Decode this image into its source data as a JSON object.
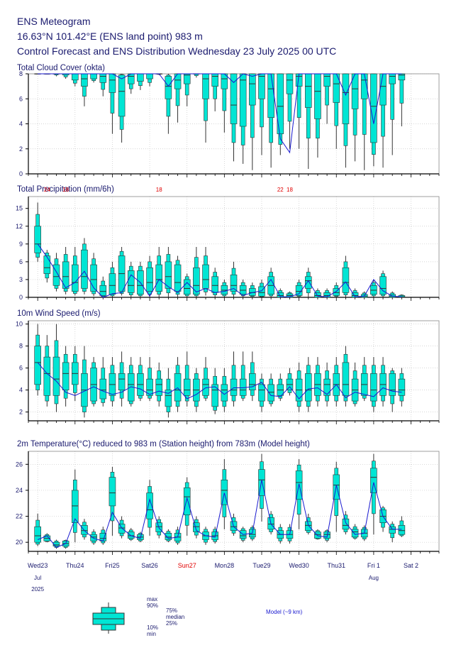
{
  "header": {
    "title": "ENS Meteogram",
    "location": "16.63°N 101.42°E (ENS land point) 983 m",
    "subtitle": "Control Forecast and ENS Distribution Wednesday 23 July 2025 00 UTC"
  },
  "colors": {
    "box": "#00e5d4",
    "line": "#1a1ad0",
    "text": "#1a1a6e",
    "grid": "#c8c8c8",
    "highlight": "#e00000"
  },
  "x_axis": {
    "days": [
      {
        "label": "Wed23",
        "highlight": false
      },
      {
        "label": "Thu24",
        "highlight": false
      },
      {
        "label": "Fri25",
        "highlight": false
      },
      {
        "label": "Sat26",
        "highlight": false
      },
      {
        "label": "Sun27",
        "highlight": true
      },
      {
        "label": "Mon28",
        "highlight": false
      },
      {
        "label": "Tue29",
        "highlight": false
      },
      {
        "label": "Wed30",
        "highlight": false
      },
      {
        "label": "Thu31",
        "highlight": false
      },
      {
        "label": "Fri 1",
        "highlight": false
      },
      {
        "label": "Sat 2",
        "highlight": false
      }
    ],
    "month_jul": "Jul",
    "month_aug": "Aug",
    "year": "2025",
    "step_hours": 6,
    "num_steps": 40
  },
  "legend": {
    "max": "max",
    "p90": "90%",
    "p75": "75%",
    "median": "median",
    "p25": "25%",
    "p10": "10%",
    "min": "min",
    "model": "Model (~9 km)"
  },
  "chart_data": [
    {
      "type": "boxplot",
      "title": "Total Cloud Cover (okta)",
      "ylim": [
        0,
        8
      ],
      "yticks": [
        0,
        2,
        4,
        6,
        8
      ],
      "boxes": [
        [
          8,
          8,
          8,
          8,
          8
        ],
        [
          8,
          8,
          8,
          8,
          8
        ],
        [
          7.8,
          8,
          8,
          8,
          8
        ],
        [
          7.6,
          7.9,
          8,
          8,
          8
        ],
        [
          7,
          7.5,
          8,
          8,
          8
        ],
        [
          5.4,
          7,
          7.6,
          8,
          8
        ],
        [
          7.3,
          7.6,
          8,
          8,
          8
        ],
        [
          6.2,
          7.3,
          7.8,
          8,
          8
        ],
        [
          3.2,
          6.5,
          7.5,
          8,
          8
        ],
        [
          2.5,
          4.6,
          6.6,
          7.9,
          8
        ],
        [
          6.4,
          7.2,
          7.8,
          8,
          8
        ],
        [
          6.7,
          7.4,
          8,
          8,
          8
        ],
        [
          7,
          7.6,
          8,
          8,
          8
        ],
        [
          7.9,
          8,
          8,
          8,
          8
        ],
        [
          3.2,
          6,
          7,
          7.8,
          8
        ],
        [
          4.1,
          6.8,
          7.5,
          8,
          8
        ],
        [
          5.4,
          7.2,
          7.9,
          8,
          8
        ],
        [
          7.7,
          8,
          8,
          8,
          8
        ],
        [
          2.5,
          6,
          7.6,
          8,
          8
        ],
        [
          5,
          7,
          7.8,
          8,
          8
        ],
        [
          3.3,
          6.8,
          7.6,
          8,
          8
        ],
        [
          1,
          4,
          5.5,
          8,
          8
        ],
        [
          0.8,
          3.8,
          7.5,
          8,
          8
        ],
        [
          0.3,
          5.5,
          7.2,
          8,
          8
        ],
        [
          1.5,
          6,
          7.8,
          8,
          8
        ],
        [
          0.5,
          4.5,
          6.8,
          8,
          8
        ],
        [
          1.5,
          3.2,
          5.4,
          8,
          8
        ],
        [
          2,
          6.4,
          7.5,
          8,
          8
        ],
        [
          2,
          7,
          7.8,
          8,
          8
        ],
        [
          0.4,
          5.3,
          7,
          8,
          8
        ],
        [
          1.3,
          4.4,
          6.6,
          8,
          8
        ],
        [
          4,
          7,
          7.8,
          8,
          8
        ],
        [
          2,
          5.7,
          7.2,
          8,
          8
        ],
        [
          0.5,
          4,
          6.5,
          8,
          8
        ],
        [
          1,
          5.2,
          6.8,
          8,
          8
        ],
        [
          0.3,
          6,
          7.5,
          8,
          8
        ],
        [
          0.6,
          2.5,
          5.4,
          8,
          8
        ],
        [
          0.5,
          5.5,
          7,
          8,
          8
        ],
        [
          1.5,
          7.2,
          7.8,
          8,
          8
        ],
        [
          3.8,
          7.5,
          7.9,
          8,
          8
        ]
      ],
      "model": [
        8,
        8,
        8,
        8,
        8,
        8,
        8,
        8,
        8,
        7.6,
        8,
        8,
        8,
        8,
        7,
        8,
        8,
        8,
        8,
        8,
        8,
        7.3,
        8,
        7.8,
        8,
        8,
        2.8,
        1.7,
        8,
        8,
        8,
        8,
        8,
        6.3,
        8,
        8,
        4,
        8,
        8,
        8
      ]
    },
    {
      "type": "boxplot",
      "title": "Total Precipitation (mm/6h)",
      "ylim": [
        0,
        17
      ],
      "yticks": [
        0,
        3,
        6,
        9,
        12,
        15
      ],
      "boxes": [
        [
          6,
          7.5,
          9,
          12,
          16
        ],
        [
          2.5,
          4,
          5,
          7,
          8
        ],
        [
          1,
          2,
          3.5,
          5.5,
          7.5
        ],
        [
          0.5,
          1.5,
          3.5,
          6,
          8.5
        ],
        [
          0.3,
          1,
          2.5,
          5.5,
          8.5
        ],
        [
          0.5,
          1.5,
          3.5,
          8,
          10
        ],
        [
          0.2,
          1,
          3,
          5.5,
          7.5
        ],
        [
          0,
          0.3,
          1,
          2,
          3.5
        ],
        [
          0,
          0.5,
          2,
          4,
          6
        ],
        [
          0.3,
          1,
          4,
          7,
          8.5
        ],
        [
          0,
          0.8,
          2,
          4.5,
          6
        ],
        [
          0,
          0.5,
          2,
          4.5,
          6
        ],
        [
          0,
          1,
          2.5,
          5,
          7
        ],
        [
          0,
          1,
          3,
          5.5,
          8.5
        ],
        [
          0,
          1.5,
          3.5,
          6,
          8.5
        ],
        [
          0,
          1,
          2.5,
          5.5,
          7
        ],
        [
          0,
          0.5,
          1.5,
          3,
          4
        ],
        [
          0,
          0.5,
          2,
          5,
          8.5
        ],
        [
          0.3,
          1.5,
          3,
          5.5,
          8.5
        ],
        [
          0,
          0.8,
          2,
          3.5,
          5
        ],
        [
          0,
          0.5,
          1.2,
          2,
          3
        ],
        [
          0,
          1,
          2,
          3.8,
          6
        ],
        [
          0,
          0.5,
          1.2,
          2,
          3
        ],
        [
          0,
          0.3,
          0.8,
          1.5,
          2.5
        ],
        [
          0,
          0.2,
          0.8,
          1.8,
          3
        ],
        [
          0,
          0.5,
          2,
          3.5,
          5
        ],
        [
          0,
          0,
          0.3,
          0.8,
          1.5
        ],
        [
          0,
          0,
          0.3,
          0.6,
          1
        ],
        [
          0,
          0.3,
          1,
          2,
          3
        ],
        [
          0,
          1.5,
          2.8,
          3.5,
          5
        ],
        [
          0,
          0,
          0.3,
          0.8,
          1.5
        ],
        [
          0,
          0,
          0.3,
          0.8,
          1.5
        ],
        [
          0,
          0.3,
          0.8,
          1.5,
          2.5
        ],
        [
          0,
          0.8,
          2.5,
          5,
          7
        ],
        [
          0,
          0,
          0.3,
          0.8,
          1.5
        ],
        [
          0,
          0,
          0.2,
          0.5,
          1
        ],
        [
          0,
          0.5,
          1.2,
          2,
          3
        ],
        [
          0,
          0.5,
          1.5,
          3.5,
          4.5
        ],
        [
          0,
          0,
          0.2,
          0.5,
          1
        ],
        [
          0,
          0,
          0.1,
          0.3,
          0.5
        ]
      ],
      "model": [
        9,
        6.8,
        4.3,
        1.6,
        2.5,
        4.4,
        1.6,
        0,
        0.6,
        0.8,
        3.8,
        2.5,
        0.2,
        3,
        1.8,
        0.8,
        2.5,
        0.9,
        1.5,
        0.8,
        1,
        1.5,
        0.3,
        0.8,
        1.1,
        3,
        0.1,
        0.1,
        0.6,
        2.8,
        0.2,
        0.1,
        1,
        2.6,
        0.1,
        0.2,
        3,
        1.1,
        0.2,
        0.1
      ],
      "annotations": [
        {
          "step": 1,
          "text": "24"
        },
        {
          "step": 3,
          "text": "18"
        },
        {
          "step": 13,
          "text": "18"
        },
        {
          "step": 26,
          "text": "22"
        },
        {
          "step": 27,
          "text": "18"
        }
      ]
    },
    {
      "type": "boxplot",
      "title": "10m Wind Speed (m/s)",
      "ylim": [
        1.2,
        10.3
      ],
      "yticks": [
        2,
        4,
        6,
        8,
        10
      ],
      "boxes": [
        [
          3.5,
          4.5,
          6.5,
          8,
          10
        ],
        [
          2.5,
          3.5,
          5.5,
          7,
          9
        ],
        [
          2,
          3.5,
          5,
          7,
          10
        ],
        [
          2.5,
          4,
          5.5,
          6.5,
          8
        ],
        [
          3,
          4.5,
          5.5,
          6.5,
          8
        ],
        [
          1.5,
          2.5,
          4,
          5.5,
          8
        ],
        [
          2.5,
          3,
          4.5,
          6,
          7
        ],
        [
          2.5,
          3.2,
          4,
          5,
          7
        ],
        [
          2.5,
          3.5,
          4.5,
          5.5,
          7
        ],
        [
          2.5,
          4,
          5,
          5.5,
          7.5
        ],
        [
          2.5,
          3,
          4.5,
          5.5,
          7
        ],
        [
          3,
          3.5,
          4.5,
          5.5,
          7
        ],
        [
          3,
          3.5,
          4,
          5,
          7
        ],
        [
          2.5,
          3.5,
          4.5,
          5,
          6.5
        ],
        [
          1.5,
          2.5,
          3.5,
          4,
          6
        ],
        [
          2,
          3,
          4,
          5.5,
          7
        ],
        [
          2.5,
          3.5,
          4,
          5,
          7.5
        ],
        [
          2,
          3,
          4,
          5,
          6
        ],
        [
          3,
          3.5,
          4.5,
          5,
          7
        ],
        [
          1.8,
          2.5,
          4,
          4.5,
          6
        ],
        [
          2,
          3,
          4,
          4.5,
          6
        ],
        [
          2.5,
          3.5,
          4,
          5,
          7.5
        ],
        [
          3,
          3.5,
          4,
          5,
          7.5
        ],
        [
          3,
          4,
          4.5,
          5.5,
          7.5
        ],
        [
          2,
          3,
          4,
          4.5,
          5.5
        ],
        [
          2.5,
          3,
          3.8,
          4.5,
          5.5
        ],
        [
          3,
          3.5,
          4,
          4.5,
          5.5
        ],
        [
          3.5,
          4,
          4.5,
          5,
          6
        ],
        [
          2,
          3,
          4,
          5,
          6.5
        ],
        [
          2,
          3,
          4,
          5.5,
          7
        ],
        [
          2.5,
          3.5,
          4.5,
          5.5,
          7
        ],
        [
          2.5,
          3.5,
          4.5,
          5,
          6.5
        ],
        [
          2.5,
          3.5,
          4.5,
          5.5,
          7
        ],
        [
          2.5,
          3.5,
          4.5,
          6.5,
          8
        ],
        [
          2.5,
          3,
          4,
          5,
          6.5
        ],
        [
          3,
          3.5,
          4.5,
          5.5,
          7
        ],
        [
          2,
          3,
          4,
          5.5,
          7
        ],
        [
          2.5,
          3.5,
          4.5,
          5.5,
          7
        ],
        [
          2,
          3.5,
          4,
          5.5,
          6
        ],
        [
          2.5,
          3.5,
          4,
          5,
          6
        ]
      ],
      "model": [
        6.5,
        5.5,
        4.8,
        3.8,
        3.5,
        3.9,
        4.3,
        3.9,
        3.6,
        3.8,
        4.3,
        4.1,
        3.6,
        3.9,
        3.7,
        4.2,
        3.2,
        3.6,
        4.2,
        4.3,
        3.6,
        4.2,
        4.2,
        4.3,
        4.7,
        3.5,
        3.4,
        4.3,
        3.2,
        4.1,
        4.2,
        3.6,
        4.5,
        3.3,
        3.8,
        3.6,
        3.4,
        4.2,
        3.9,
        3.8
      ]
    },
    {
      "type": "boxplot",
      "title": "2m Temperature(°C) reduced to 983 m (Station height) from 783m (Model height)",
      "ylim": [
        19.3,
        27
      ],
      "yticks": [
        20,
        22,
        24,
        26
      ],
      "boxes": [
        [
          19.7,
          20,
          20.5,
          21.2,
          22.2
        ],
        [
          20,
          20.1,
          20.3,
          20.5,
          20.7
        ],
        [
          19.5,
          19.7,
          19.8,
          20,
          20.2
        ],
        [
          19.5,
          19.7,
          19.9,
          20.1,
          20.2
        ],
        [
          20,
          21.5,
          22.8,
          24,
          25.6
        ],
        [
          20.2,
          20.6,
          20.9,
          21.3,
          21.8
        ],
        [
          19.8,
          20.1,
          20.4,
          20.6,
          21
        ],
        [
          19.8,
          20.1,
          20.3,
          20.7,
          21.2
        ],
        [
          20.5,
          22.8,
          23.8,
          25,
          25.8
        ],
        [
          20.3,
          20.7,
          21.1,
          21.4,
          22
        ],
        [
          20.1,
          20.3,
          20.5,
          20.8,
          21.1
        ],
        [
          20,
          20.2,
          20.4,
          20.6,
          20.8
        ],
        [
          20.5,
          21.8,
          22.5,
          23.8,
          24.8
        ],
        [
          20.3,
          20.8,
          21.2,
          21.5,
          22
        ],
        [
          20,
          20.2,
          20.4,
          20.7,
          21
        ],
        [
          19.8,
          20.1,
          20.4,
          20.7,
          21.2
        ],
        [
          20.5,
          22.1,
          23.5,
          24.2,
          25
        ],
        [
          20.3,
          20.8,
          21.2,
          21.5,
          22
        ],
        [
          19.8,
          20.2,
          20.5,
          20.8,
          21.2
        ],
        [
          19.9,
          20.2,
          20.5,
          20.8,
          21.2
        ],
        [
          21,
          22.9,
          24,
          24.8,
          26.4
        ],
        [
          20.5,
          20.9,
          21.2,
          21.6,
          22.2
        ],
        [
          20,
          20.3,
          20.5,
          20.9,
          21.2
        ],
        [
          20.1,
          20.4,
          20.6,
          21,
          21.3
        ],
        [
          21.6,
          23.6,
          24.8,
          25.6,
          26.8
        ],
        [
          20.6,
          21,
          21.4,
          21.9,
          22.4
        ],
        [
          19.9,
          20.3,
          20.6,
          20.9,
          21.4
        ],
        [
          19.9,
          20.3,
          20.6,
          20.9,
          21.4
        ],
        [
          21,
          23.3,
          24.6,
          25.5,
          26.4
        ],
        [
          20.6,
          20.9,
          21.3,
          21.6,
          22.2
        ],
        [
          20.2,
          20.3,
          20.6,
          20.8,
          21
        ],
        [
          20,
          20.3,
          20.6,
          20.8,
          21
        ],
        [
          20.8,
          23.3,
          24.4,
          25.2,
          26.2
        ],
        [
          20.6,
          21,
          21.3,
          21.8,
          22.4
        ],
        [
          20.2,
          20.4,
          20.8,
          21,
          21.4
        ],
        [
          20.1,
          20.4,
          20.7,
          21,
          21.3
        ],
        [
          20.6,
          23.8,
          25,
          25.7,
          26.8
        ],
        [
          20.8,
          21.5,
          22,
          22.5,
          22.8
        ],
        [
          20,
          20.7,
          21,
          21.2,
          21.6
        ],
        [
          20.4,
          20.6,
          20.9,
          21.3,
          22
        ]
      ],
      "model": [
        20.2,
        20.5,
        19.6,
        19.9,
        21.8,
        20.9,
        20.3,
        20.1,
        22.3,
        21.1,
        20.5,
        20.3,
        23.3,
        21.1,
        20.3,
        20.4,
        23.4,
        20.9,
        20.5,
        20.4,
        23.8,
        21.2,
        20.6,
        20.7,
        24.8,
        21.4,
        20.6,
        20.6,
        24.5,
        21.3,
        20.5,
        20.4,
        24.4,
        21.5,
        20.6,
        20.7,
        24.6,
        22,
        21,
        21
      ]
    }
  ]
}
